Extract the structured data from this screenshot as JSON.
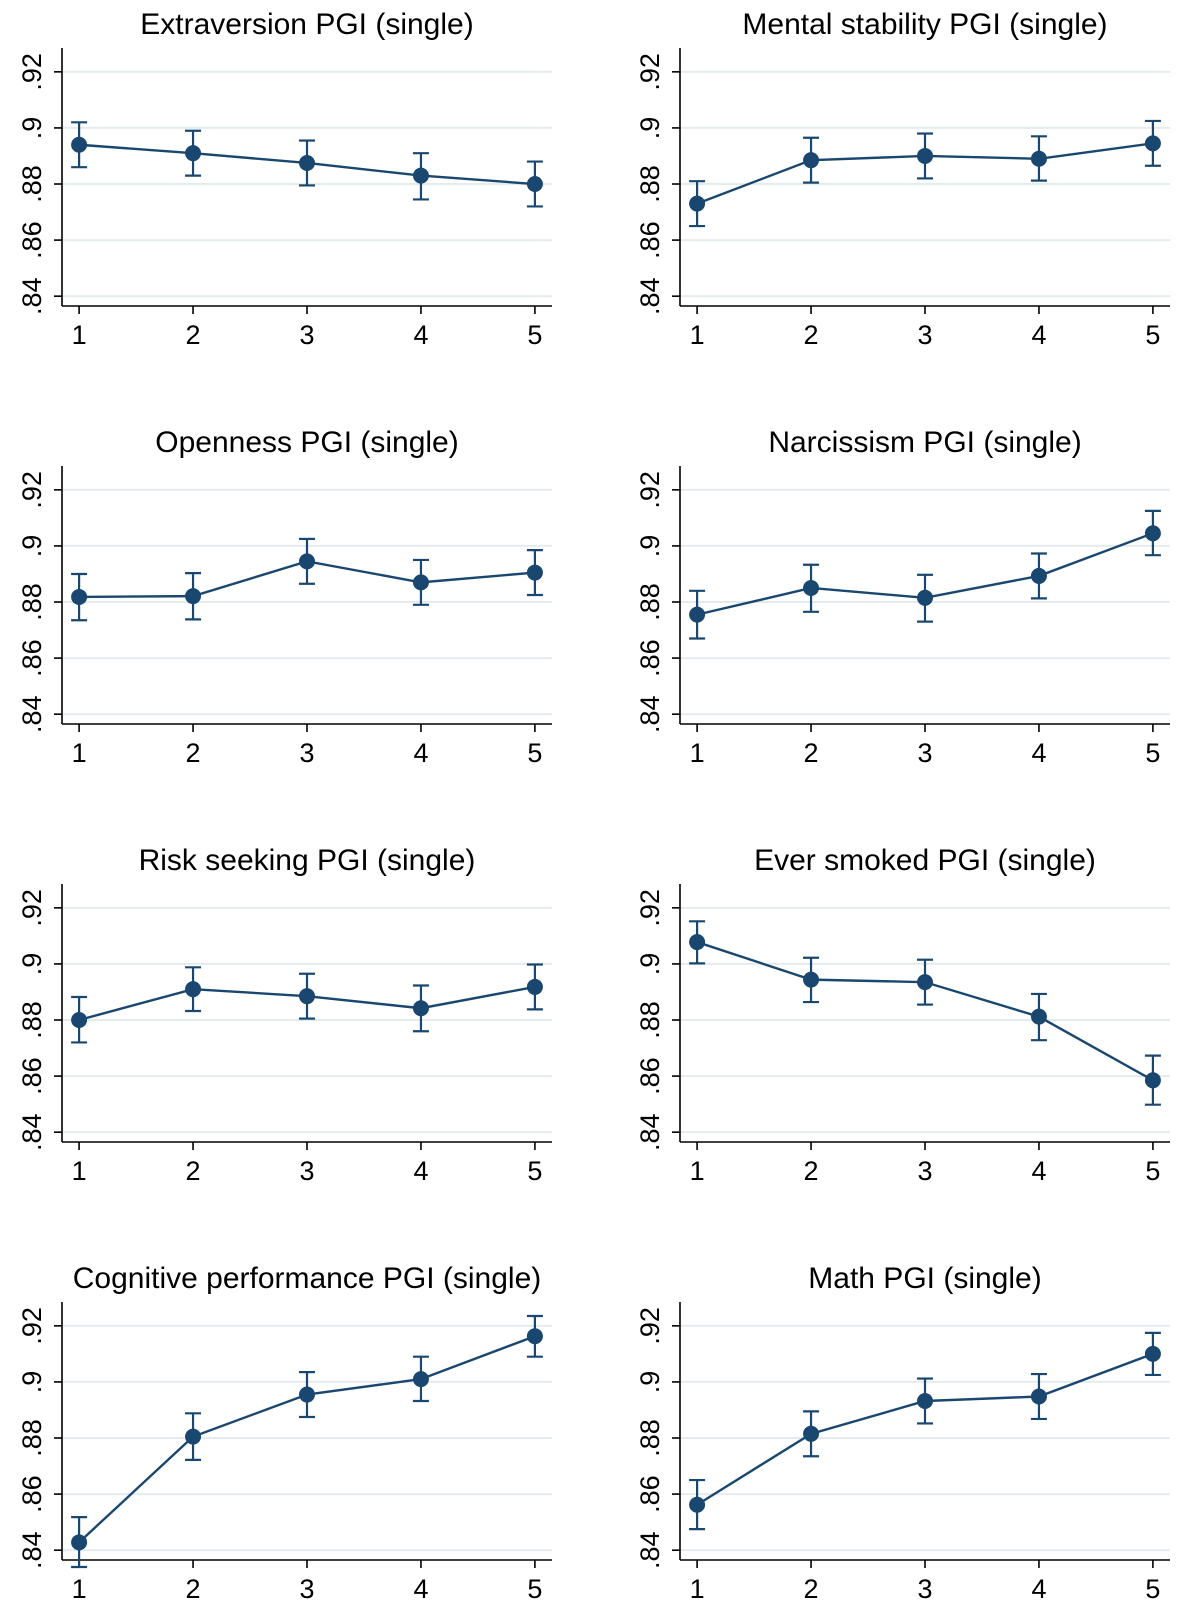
{
  "chart_data": [
    {
      "type": "line",
      "title": "Extraversion PGI (single)",
      "x": [
        1,
        2,
        3,
        4,
        5
      ],
      "values": [
        0.894,
        0.891,
        0.8875,
        0.883,
        0.88
      ],
      "ci_low": [
        0.886,
        0.883,
        0.8795,
        0.8745,
        0.872
      ],
      "ci_high": [
        0.902,
        0.899,
        0.8955,
        0.891,
        0.888
      ],
      "xticks": [
        "1",
        "2",
        "3",
        "4",
        "5"
      ],
      "yticks": [
        ".84",
        ".86",
        ".88",
        ".9",
        ".92"
      ],
      "ytick_values": [
        0.84,
        0.86,
        0.88,
        0.9,
        0.92
      ],
      "ylim": [
        0.8365,
        0.9285
      ],
      "xlim": [
        0.85,
        5.15
      ],
      "grid": true
    },
    {
      "type": "line",
      "title": "Mental stability PGI (single)",
      "x": [
        1,
        2,
        3,
        4,
        5
      ],
      "values": [
        0.873,
        0.8885,
        0.89,
        0.889,
        0.8945
      ],
      "ci_low": [
        0.865,
        0.8805,
        0.882,
        0.8812,
        0.8865
      ],
      "ci_high": [
        0.881,
        0.8965,
        0.898,
        0.897,
        0.9025
      ],
      "xticks": [
        "1",
        "2",
        "3",
        "4",
        "5"
      ],
      "yticks": [
        ".84",
        ".86",
        ".88",
        ".9",
        ".92"
      ],
      "ytick_values": [
        0.84,
        0.86,
        0.88,
        0.9,
        0.92
      ],
      "ylim": [
        0.8365,
        0.9285
      ],
      "xlim": [
        0.85,
        5.15
      ],
      "grid": true
    },
    {
      "type": "line",
      "title": "Openness PGI (single)",
      "x": [
        1,
        2,
        3,
        4,
        5
      ],
      "values": [
        0.8818,
        0.8821,
        0.8945,
        0.887,
        0.8905
      ],
      "ci_low": [
        0.8735,
        0.8738,
        0.8865,
        0.879,
        0.8825
      ],
      "ci_high": [
        0.89,
        0.8903,
        0.9025,
        0.895,
        0.8985
      ],
      "xticks": [
        "1",
        "2",
        "3",
        "4",
        "5"
      ],
      "yticks": [
        ".84",
        ".86",
        ".88",
        ".9",
        ".92"
      ],
      "ytick_values": [
        0.84,
        0.86,
        0.88,
        0.9,
        0.92
      ],
      "ylim": [
        0.8365,
        0.9285
      ],
      "xlim": [
        0.85,
        5.15
      ],
      "grid": true
    },
    {
      "type": "line",
      "title": "Narcissism PGI (single)",
      "x": [
        1,
        2,
        3,
        4,
        5
      ],
      "values": [
        0.8755,
        0.885,
        0.8815,
        0.8893,
        0.9045
      ],
      "ci_low": [
        0.867,
        0.8765,
        0.873,
        0.8813,
        0.8967
      ],
      "ci_high": [
        0.884,
        0.8933,
        0.8897,
        0.8973,
        0.9125
      ],
      "xticks": [
        "1",
        "2",
        "3",
        "4",
        "5"
      ],
      "yticks": [
        ".84",
        ".86",
        ".88",
        ".9",
        ".92"
      ],
      "ytick_values": [
        0.84,
        0.86,
        0.88,
        0.9,
        0.92
      ],
      "ylim": [
        0.8365,
        0.9285
      ],
      "xlim": [
        0.85,
        5.15
      ],
      "grid": true
    },
    {
      "type": "line",
      "title": "Risk seeking PGI (single)",
      "x": [
        1,
        2,
        3,
        4,
        5
      ],
      "values": [
        0.88,
        0.891,
        0.8885,
        0.8842,
        0.8918
      ],
      "ci_low": [
        0.872,
        0.8832,
        0.8805,
        0.876,
        0.8838
      ],
      "ci_high": [
        0.8882,
        0.8988,
        0.8965,
        0.8923,
        0.8998
      ],
      "xticks": [
        "1",
        "2",
        "3",
        "4",
        "5"
      ],
      "yticks": [
        ".84",
        ".86",
        ".88",
        ".9",
        ".92"
      ],
      "ytick_values": [
        0.84,
        0.86,
        0.88,
        0.9,
        0.92
      ],
      "ylim": [
        0.8365,
        0.9285
      ],
      "xlim": [
        0.85,
        5.15
      ],
      "grid": true
    },
    {
      "type": "line",
      "title": "Ever smoked PGI (single)",
      "x": [
        1,
        2,
        3,
        4,
        5
      ],
      "values": [
        0.9078,
        0.8944,
        0.8935,
        0.8812,
        0.8585
      ],
      "ci_low": [
        0.9002,
        0.8864,
        0.8855,
        0.8728,
        0.8498
      ],
      "ci_high": [
        0.9152,
        0.9022,
        0.9015,
        0.8893,
        0.8673
      ],
      "xticks": [
        "1",
        "2",
        "3",
        "4",
        "5"
      ],
      "yticks": [
        ".84",
        ".86",
        ".88",
        ".9",
        ".92"
      ],
      "ytick_values": [
        0.84,
        0.86,
        0.88,
        0.9,
        0.92
      ],
      "ylim": [
        0.8365,
        0.9285
      ],
      "xlim": [
        0.85,
        5.15
      ],
      "grid": true
    },
    {
      "type": "line",
      "title": "Cognitive performance PGI (single)",
      "x": [
        1,
        2,
        3,
        4,
        5
      ],
      "values": [
        0.8428,
        0.8805,
        0.8955,
        0.901,
        0.9163
      ],
      "ci_low": [
        0.834,
        0.8722,
        0.8875,
        0.8932,
        0.909
      ],
      "ci_high": [
        0.8518,
        0.8888,
        0.9035,
        0.909,
        0.9235
      ],
      "xticks": [
        "1",
        "2",
        "3",
        "4",
        "5"
      ],
      "yticks": [
        ".84",
        ".86",
        ".88",
        ".9",
        ".92"
      ],
      "ytick_values": [
        0.84,
        0.86,
        0.88,
        0.9,
        0.92
      ],
      "ylim": [
        0.8365,
        0.9285
      ],
      "xlim": [
        0.85,
        5.15
      ],
      "grid": true
    },
    {
      "type": "line",
      "title": "Math PGI (single)",
      "x": [
        1,
        2,
        3,
        4,
        5
      ],
      "values": [
        0.8562,
        0.8815,
        0.8932,
        0.8948,
        0.91
      ],
      "ci_low": [
        0.8475,
        0.8735,
        0.8852,
        0.8868,
        0.9025
      ],
      "ci_high": [
        0.865,
        0.8895,
        0.9012,
        0.9028,
        0.9175
      ],
      "xticks": [
        "1",
        "2",
        "3",
        "4",
        "5"
      ],
      "yticks": [
        ".84",
        ".86",
        ".88",
        ".9",
        ".92"
      ],
      "ytick_values": [
        0.84,
        0.86,
        0.88,
        0.9,
        0.92
      ],
      "ylim": [
        0.8365,
        0.9285
      ],
      "xlim": [
        0.85,
        5.15
      ],
      "grid": true
    }
  ],
  "colors": {
    "series": "#1a476f",
    "grid": "#e4ebef",
    "axis": "#000000"
  }
}
